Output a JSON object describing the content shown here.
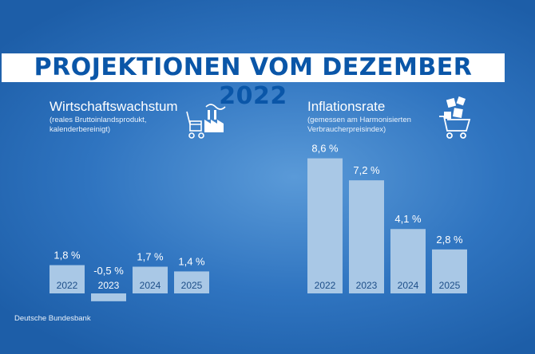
{
  "banner_title": "PROJEKTIONEN VOM DEZEMBER 2022",
  "source": "Deutsche Bundesbank",
  "colors": {
    "bar": "#a9c8e6",
    "banner_text": "#0a56a8"
  },
  "icons": [
    "factory-cart-icon",
    "shopping-cart-icon"
  ],
  "chart_data": [
    {
      "type": "bar",
      "title": "Wirtschaftswachstum",
      "subtitle": "(reales Bruttoinlandsprodukt, kalenderbereinigt)",
      "categories": [
        "2022",
        "2023",
        "2024",
        "2025"
      ],
      "values": [
        1.8,
        -0.5,
        1.7,
        1.4
      ],
      "value_labels": [
        "1,8 %",
        "-0,5 %",
        "1,7 %",
        "1,4 %"
      ],
      "unit": "%"
    },
    {
      "type": "bar",
      "title": "Inflationsrate",
      "subtitle": "(gemessen am Harmonisierten Verbraucherpreisindex)",
      "categories": [
        "2022",
        "2023",
        "2024",
        "2025"
      ],
      "values": [
        8.6,
        7.2,
        4.1,
        2.8
      ],
      "value_labels": [
        "8,6 %",
        "7,2 %",
        "4,1 %",
        "2,8 %"
      ],
      "unit": "%"
    }
  ]
}
